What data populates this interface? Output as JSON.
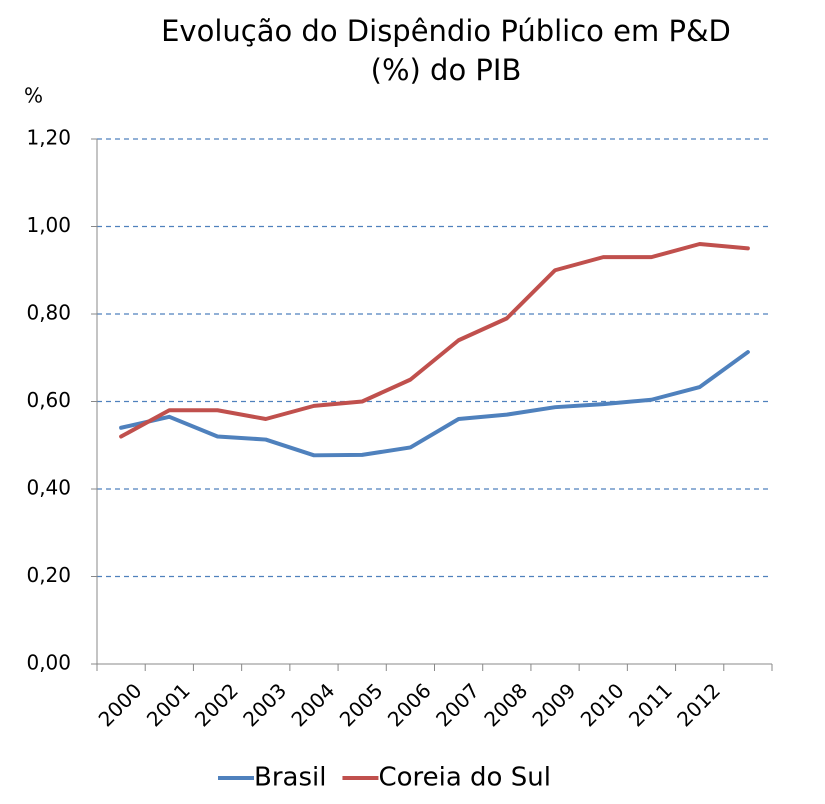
{
  "chart_data": {
    "type": "line",
    "title": [
      "Evolução do Dispêndio Público em P&D",
      "(%) do PIB"
    ],
    "y_label": "%",
    "categories": [
      "2000",
      "2001",
      "2002",
      "2003",
      "2004",
      "2005",
      "2006",
      "2007",
      "2008",
      "2009",
      "2010",
      "2011",
      "2012",
      null
    ],
    "series": [
      {
        "name": "Brasil",
        "color": "#4f81bd",
        "values": [
          0.54,
          0.565,
          0.52,
          0.513,
          0.477,
          0.478,
          0.495,
          0.56,
          0.57,
          0.587,
          0.594,
          0.604,
          0.633,
          0.713
        ]
      },
      {
        "name": "Coreia do Sul",
        "color": "#c0504d",
        "values": [
          0.52,
          0.58,
          0.58,
          0.56,
          0.59,
          0.6,
          0.65,
          0.74,
          0.79,
          0.9,
          0.93,
          0.93,
          0.96,
          0.95
        ]
      }
    ],
    "ylim": [
      0,
      1.2
    ],
    "yticks": [
      {
        "value": 0,
        "label": "0,00"
      },
      {
        "value": 0.2,
        "label": "0,20"
      },
      {
        "value": 0.4,
        "label": "0,40"
      },
      {
        "value": 0.6,
        "label": "0,60"
      },
      {
        "value": 0.8,
        "label": "0,80"
      },
      {
        "value": 1.0,
        "label": "1,00"
      },
      {
        "value": 1.2,
        "label": "1,20"
      }
    ],
    "grid": true,
    "legend": "bottom"
  }
}
